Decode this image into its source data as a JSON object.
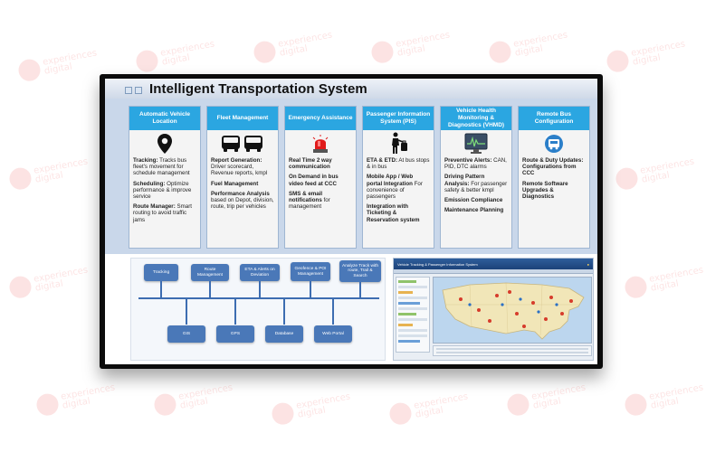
{
  "title": "Intelligent Transportation System",
  "watermark": {
    "line1": "experiences",
    "line2": "digital"
  },
  "cards": [
    {
      "heading": "Automatic Vehicle Location",
      "icon": "location-pin-icon",
      "items": [
        {
          "bold": "Tracking:",
          "text": " Tracks bus fleet's movement for schedule management"
        },
        {
          "bold": "Scheduling:",
          "text": " Optimize performance & improve service"
        },
        {
          "bold": "Route Manager:",
          "text": " Smart routing to avoid traffic jams"
        }
      ]
    },
    {
      "heading": "Fleet Management",
      "icon": "bus-icon",
      "items": [
        {
          "bold": "Report Generation:",
          "text": " Driver scorecard, Revenue reports, kmpl"
        },
        {
          "bold": "Fuel Management",
          "text": ""
        },
        {
          "bold": "Performance Analysis",
          "text": " based on Depot, division, route, trip per vehicles"
        }
      ]
    },
    {
      "heading": "Emergency Assistance",
      "icon": "siren-icon",
      "items": [
        {
          "bold": "Real Time 2 way communication",
          "text": ""
        },
        {
          "bold": "On Demand in bus video feed at CCC",
          "text": ""
        },
        {
          "bold": "SMS & email notifications",
          "text": " for management"
        }
      ]
    },
    {
      "heading": "Passenger Information System (PIS)",
      "icon": "passenger-icon",
      "items": [
        {
          "bold": "ETA & ETD:",
          "text": " At bus stops & in bus"
        },
        {
          "bold": "Mobile App / Web portal Integration",
          "text": " For convenience of passengers"
        },
        {
          "bold": "Integration with Ticketing & Reservation system",
          "text": ""
        }
      ]
    },
    {
      "heading": "Vehicle Health Monitoring & Diagnostics (VHMD)",
      "icon": "monitor-icon",
      "items": [
        {
          "bold": "Preventive Alerts:",
          "text": " CAN, PID, DTC alarms"
        },
        {
          "bold": "Driving Pattern Analysis:",
          "text": " For passenger safety & better kmpl"
        },
        {
          "bold": "Emission Compliance",
          "text": ""
        },
        {
          "bold": "Maintenance Planning",
          "text": ""
        }
      ]
    },
    {
      "heading": "Remote Bus Configuration",
      "icon": "remote-config-icon",
      "items": [
        {
          "bold": "Route & Duty Updates: Configurations from CCC",
          "text": ""
        },
        {
          "bold": "Remote Software Upgrades & Diagnostics",
          "text": ""
        }
      ]
    }
  ],
  "diagram": {
    "top_boxes": [
      "Tracking",
      "Route Management",
      "ETA & Alerts on Deviation",
      "Geofence & POI Management",
      "Analyze Track with route, Trail & Search"
    ],
    "bottom_boxes": [
      "GIS",
      "GPS",
      "Database",
      "Web Portal"
    ]
  },
  "map_app": {
    "header": "Vehicle Tracking & Passenger Information System"
  },
  "colors": {
    "card_header": "#2ba6e1",
    "card_area": "#c9d7ea",
    "diagram_box": "#4a78b8"
  }
}
